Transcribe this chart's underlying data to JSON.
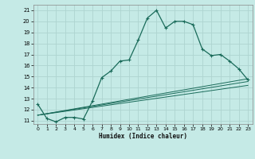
{
  "xlabel": "Humidex (Indice chaleur)",
  "bg_color": "#c5eae6",
  "grid_color": "#aed4d0",
  "line_color": "#1a6b5a",
  "xlim": [
    -0.5,
    23.5
  ],
  "ylim": [
    10.7,
    21.5
  ],
  "xticks": [
    0,
    1,
    2,
    3,
    4,
    5,
    6,
    7,
    8,
    9,
    10,
    11,
    12,
    13,
    14,
    15,
    16,
    17,
    18,
    19,
    20,
    21,
    22,
    23
  ],
  "yticks": [
    11,
    12,
    13,
    14,
    15,
    16,
    17,
    18,
    19,
    20,
    21
  ],
  "curve1_x": [
    0,
    1,
    2,
    3,
    4,
    5,
    6,
    7,
    8,
    9,
    10,
    11,
    12,
    13,
    14,
    15,
    16,
    17,
    18,
    19,
    20,
    21,
    22,
    23
  ],
  "curve1_y": [
    12.5,
    11.2,
    10.9,
    11.3,
    11.3,
    11.15,
    12.8,
    14.9,
    15.5,
    16.4,
    16.5,
    18.3,
    20.3,
    21.0,
    19.4,
    20.0,
    20.0,
    19.7,
    17.5,
    16.9,
    17.0,
    16.4,
    15.7,
    14.7
  ],
  "curve2_x": [
    0,
    23
  ],
  "curve2_y": [
    11.5,
    14.8
  ],
  "curve3_x": [
    0,
    23
  ],
  "curve3_y": [
    11.5,
    14.55
  ],
  "curve4_x": [
    0,
    23
  ],
  "curve4_y": [
    11.5,
    14.2
  ]
}
